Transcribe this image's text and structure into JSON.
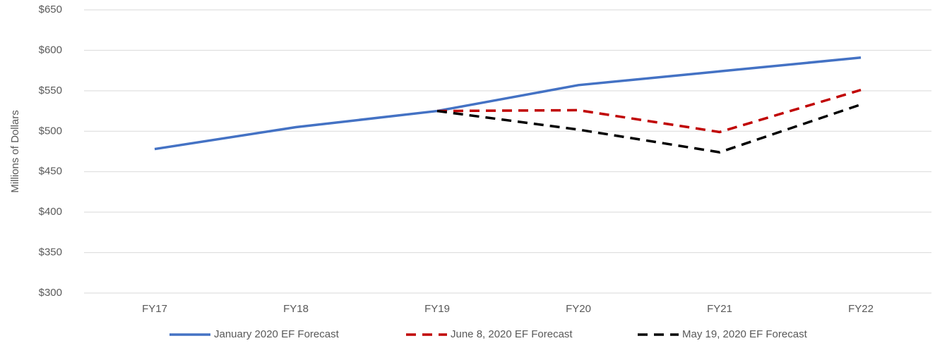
{
  "chart_data": {
    "type": "line",
    "y_axis_label": "Millions of Dollars",
    "categories": [
      "FY17",
      "FY18",
      "FY19",
      "FY20",
      "FY21",
      "FY22"
    ],
    "series": [
      {
        "name": "January 2020 EF Forecast",
        "color": "#4472c4",
        "dash": false,
        "values": [
          478,
          505,
          525,
          557,
          574,
          591
        ]
      },
      {
        "name": "June 8, 2020 EF Forecast",
        "color": "#c00000",
        "dash": true,
        "values": [
          null,
          null,
          525,
          526,
          499,
          551
        ]
      },
      {
        "name": "May 19, 2020 EF Forecast",
        "color": "#000000",
        "dash": true,
        "values": [
          null,
          null,
          525,
          502,
          474,
          533
        ]
      }
    ],
    "ylim": [
      300,
      650
    ],
    "yticks": [
      {
        "value": 300,
        "label": "$300"
      },
      {
        "value": 350,
        "label": "$350"
      },
      {
        "value": 400,
        "label": "$400"
      },
      {
        "value": 450,
        "label": "$450"
      },
      {
        "value": 500,
        "label": "$500"
      },
      {
        "value": 550,
        "label": "$550"
      },
      {
        "value": 600,
        "label": "$600"
      },
      {
        "value": 650,
        "label": "$650"
      }
    ],
    "grid": true,
    "legend": "bottom"
  }
}
